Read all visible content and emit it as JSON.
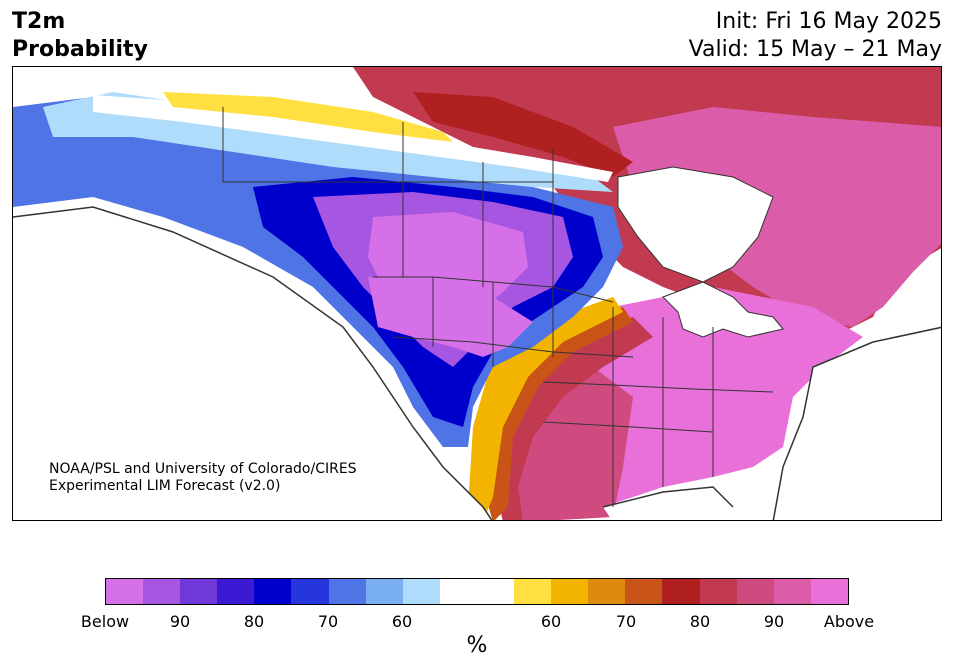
{
  "header": {
    "variable": "T2m",
    "quantity": "Probability",
    "init": "Init: Fri 16 May 2025",
    "valid": "Valid: 15 May – 21 May"
  },
  "credit": {
    "line1": "NOAA/PSL and University of Colorado/CIRES",
    "line2": "Experimental LIM Forecast (v2.0)"
  },
  "colorbar": {
    "unit": "%",
    "colors": [
      "#d670e8",
      "#a656e0",
      "#7038d8",
      "#3c1ad4",
      "#0000cc",
      "#2436dc",
      "#4e74e6",
      "#7ab0f2",
      "#b0dcfc",
      "#ffffff",
      "#ffffff",
      "#ffe040",
      "#f2b400",
      "#de8a0e",
      "#c85418",
      "#b02020",
      "#c23a50",
      "#cf4a7e",
      "#db5ca8",
      "#e870d8"
    ],
    "labels": [
      "Below",
      "90",
      "80",
      "70",
      "60",
      "60",
      "70",
      "80",
      "90",
      "Above"
    ]
  },
  "map": {
    "water_color": "#ffffff",
    "line_color": "#333333",
    "region_fill": {
      "arctic_warm": "#c23a50",
      "canada_east": "#db5ca8",
      "hudson_band": "#b02020",
      "yukon_white": "#ffffff",
      "yellow_band": "#f2b400",
      "cold_core": "#0000cc",
      "cold_light": "#4e74e6",
      "cold_purple": "#a656e0",
      "west_purple": "#d670e8",
      "us_warm": "#e870d8"
    }
  }
}
